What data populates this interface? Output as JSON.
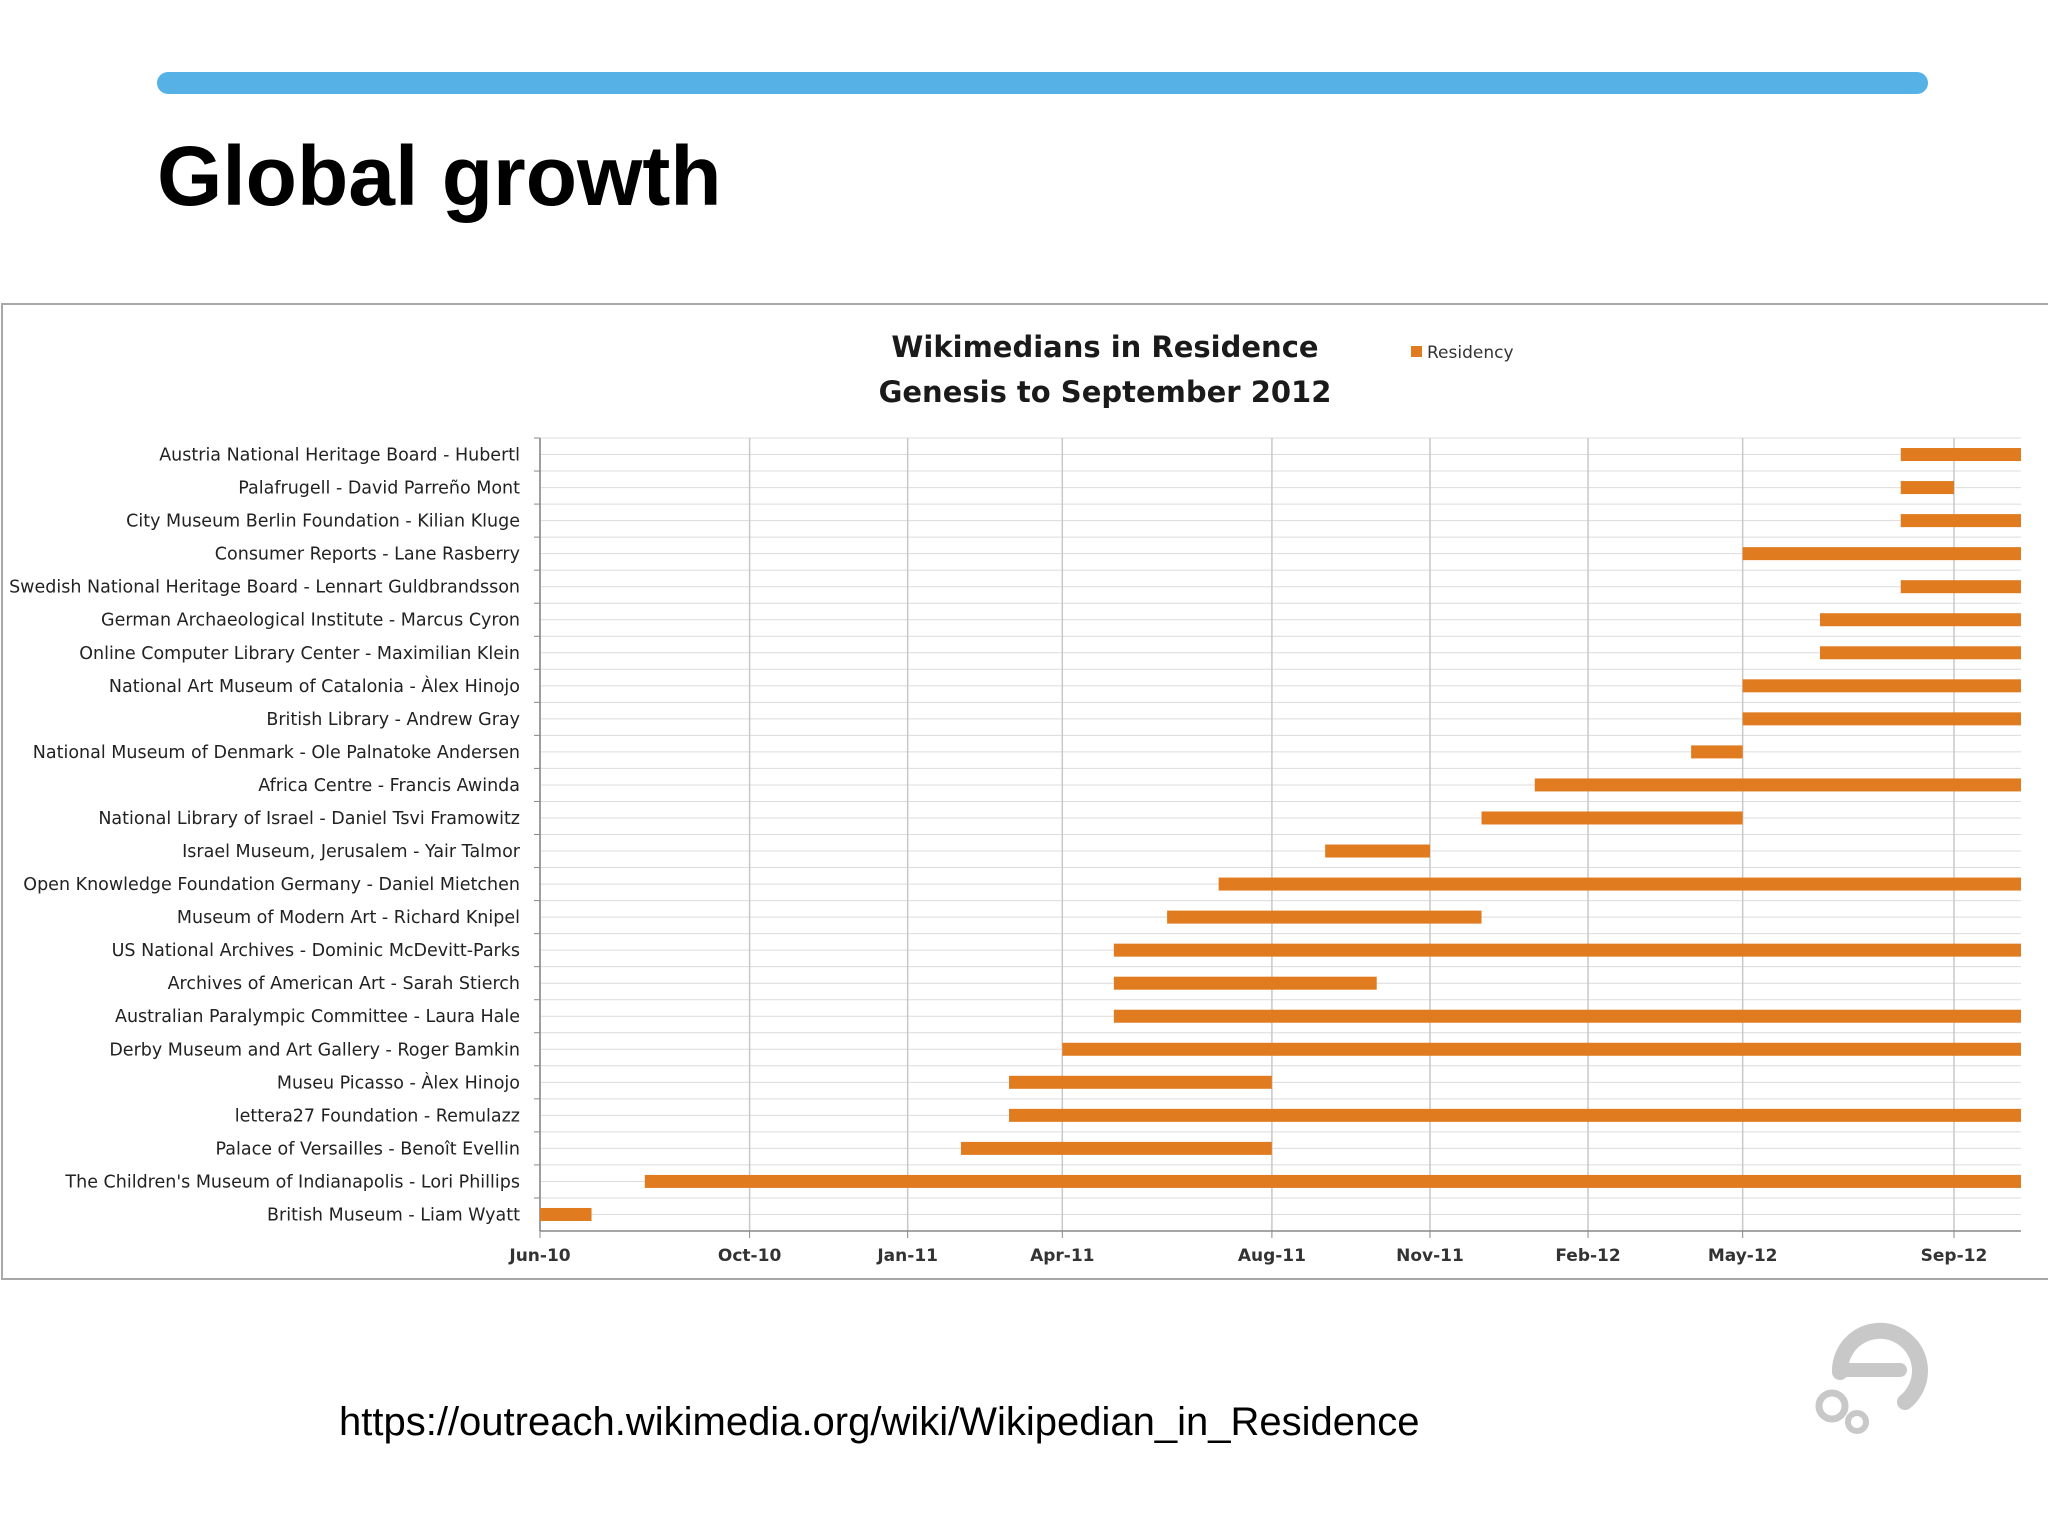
{
  "slide": {
    "title": "Global growth",
    "footer_url": "https://outreach.wikimedia.org/wiki/Wikipedian_in_Residence",
    "accent_color": "#56b1e6"
  },
  "logo": {
    "icon": "wikimedia-outreach-logo-icon",
    "color": "#c8c8c8"
  },
  "chart_data": {
    "type": "gantt",
    "title_lines": [
      "Wikimedians in Residence",
      "Genesis to September 2012"
    ],
    "legend": {
      "label": "Residency",
      "position": "top-right",
      "color": "#e07b20"
    },
    "bar_color": "#e07b20",
    "x_axis": {
      "type": "date",
      "range": [
        "2010-06-01",
        "2012-10-10"
      ],
      "ticks": [
        {
          "date": "2010-06-01",
          "label": "Jun-10"
        },
        {
          "date": "2010-10-01",
          "label": "Oct-10"
        },
        {
          "date": "2011-01-01",
          "label": "Jan-11"
        },
        {
          "date": "2011-04-01",
          "label": "Apr-11"
        },
        {
          "date": "2011-08-01",
          "label": "Aug-11"
        },
        {
          "date": "2011-11-01",
          "label": "Nov-11"
        },
        {
          "date": "2012-02-01",
          "label": "Feb-12"
        },
        {
          "date": "2012-05-01",
          "label": "May-12"
        },
        {
          "date": "2012-09-01",
          "label": "Sep-12"
        }
      ]
    },
    "grid": true,
    "series": [
      {
        "label": "Austria National  Heritage Board - Hubertl",
        "start": "2012-08-01",
        "end": "2012-10-10"
      },
      {
        "label": "Palafrugell - David Parreño Mont",
        "start": "2012-08-01",
        "end": "2012-09-01"
      },
      {
        "label": "City Museum Berlin Foundation  - Kilian Kluge",
        "start": "2012-08-01",
        "end": "2012-10-10"
      },
      {
        "label": "Consumer Reports - Lane Rasberry",
        "start": "2012-05-01",
        "end": "2012-10-10"
      },
      {
        "label": "Swedish National  Heritage Board - Lennart Guldbrandsson",
        "start": "2012-08-01",
        "end": "2012-10-10"
      },
      {
        "label": "German Archaeological Institute  - Marcus Cyron",
        "start": "2012-06-15",
        "end": "2012-10-10"
      },
      {
        "label": "Online Computer Library Center - Maximilian  Klein",
        "start": "2012-06-15",
        "end": "2012-10-10"
      },
      {
        "label": "National Art Museum of Catalonia  - Àlex Hinojo",
        "start": "2012-05-01",
        "end": "2012-10-10"
      },
      {
        "label": "British Library - Andrew Gray",
        "start": "2012-05-01",
        "end": "2012-10-10"
      },
      {
        "label": "National Museum of Denmark - Ole Palnatoke Andersen",
        "start": "2012-04-01",
        "end": "2012-05-01"
      },
      {
        "label": "Africa Centre - Francis Awinda",
        "start": "2012-01-01",
        "end": "2012-10-10"
      },
      {
        "label": "National Library of Israel - Daniel Tsvi Framowitz",
        "start": "2011-12-01",
        "end": "2012-05-01"
      },
      {
        "label": "Israel Museum, Jerusalem - Yair Talmor",
        "start": "2011-09-01",
        "end": "2011-11-01"
      },
      {
        "label": "Open Knowledge Foundation Germany - Daniel Mietchen",
        "start": "2011-07-01",
        "end": "2012-10-10"
      },
      {
        "label": "Museum of Modern Art - Richard Knipel",
        "start": "2011-06-01",
        "end": "2011-12-01"
      },
      {
        "label": "US National  Archives - Dominic McDevitt-Parks",
        "start": "2011-05-01",
        "end": "2012-10-10"
      },
      {
        "label": "Archives of American Art - Sarah Stierch",
        "start": "2011-05-01",
        "end": "2011-10-01"
      },
      {
        "label": "Australian Paralympic Committee  - Laura Hale",
        "start": "2011-05-01",
        "end": "2012-10-10"
      },
      {
        "label": "Derby Museum and Art Gallery - Roger Bamkin",
        "start": "2011-04-01",
        "end": "2012-10-10"
      },
      {
        "label": "Museu Picasso - Àlex Hinojo",
        "start": "2011-03-01",
        "end": "2011-08-01"
      },
      {
        "label": "lettera27 Foundation  - Remulazz",
        "start": "2011-03-01",
        "end": "2012-10-10"
      },
      {
        "label": "Palace of Versailles - Benoît Evellin",
        "start": "2011-02-01",
        "end": "2011-08-01"
      },
      {
        "label": "The Children's Museum of Indianapolis - Lori Phillips",
        "start": "2010-08-01",
        "end": "2012-10-10"
      },
      {
        "label": "British Museum - Liam Wyatt",
        "start": "2010-06-01",
        "end": "2010-07-01"
      }
    ]
  }
}
